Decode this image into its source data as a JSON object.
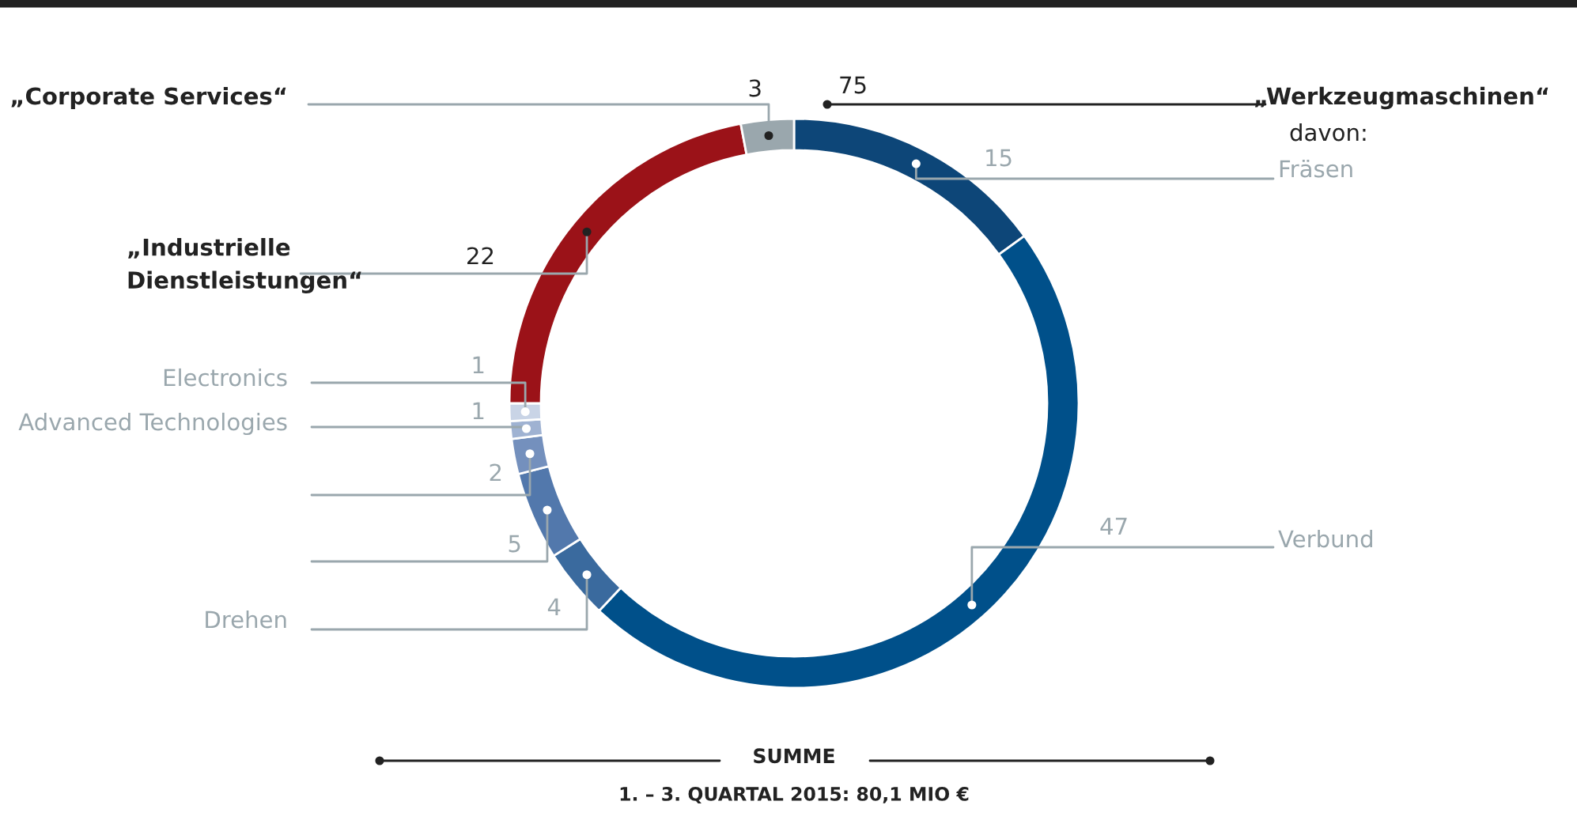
{
  "chart_data": {
    "type": "donut",
    "categories": [
      "Fräsen",
      "Verbund",
      "Drehen",
      null,
      null,
      "Advanced Technologies",
      "Electronics",
      "„Industrielle\nDienstleistungen“",
      "„Corporate Services“"
    ],
    "values": [
      15,
      47,
      4,
      5,
      2,
      1,
      1,
      22,
      3
    ],
    "colors": [
      "#0d4678",
      "#00508a",
      "#3a6a9e",
      "#5278ac",
      "#7490bd",
      "#9fb2d2",
      "#c9d4e6",
      "#9b1218",
      "#9aa7ad"
    ],
    "data_labels": true,
    "annotations": [
      "75",
      "„Werkzeugmaschinen“",
      "davon:",
      "SUMME",
      "1. – 3. QUARTAL 2015: 80,1 MIO €"
    ]
  }
}
